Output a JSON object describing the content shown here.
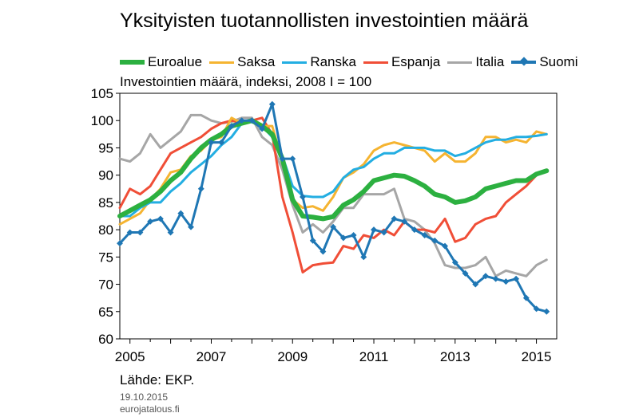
{
  "colors": {
    "Euroalue": "#2CB040",
    "Saksa": "#F5B431",
    "Ranska": "#23AEE2",
    "Espanja": "#F04E37",
    "Italia": "#A6A6A6",
    "Suomi": "#1F77B4"
  },
  "source": "Lähde: EKP.",
  "date": "19.10.2015",
  "site": "eurojatalous.fi",
  "chart_data": {
    "type": "line",
    "title": "Yksityisten tuotannollisten investointien määrä",
    "subtitle": "Investointien määrä, indeksi, 2008 I = 100",
    "xlabel": "",
    "ylabel": "",
    "ylim": [
      60,
      105
    ],
    "xlim": [
      2004.75,
      2015.5
    ],
    "yticks": [
      60,
      65,
      70,
      75,
      80,
      85,
      90,
      95,
      100,
      105
    ],
    "xticks": [
      2005,
      2007,
      2009,
      2011,
      2013,
      2015
    ],
    "grid": false,
    "legend": "top",
    "x": [
      2004.75,
      2005.0,
      2005.25,
      2005.5,
      2005.75,
      2006.0,
      2006.25,
      2006.5,
      2006.75,
      2007.0,
      2007.25,
      2007.5,
      2007.75,
      2008.0,
      2008.25,
      2008.5,
      2008.75,
      2009.0,
      2009.25,
      2009.5,
      2009.75,
      2010.0,
      2010.25,
      2010.5,
      2010.75,
      2011.0,
      2011.25,
      2011.5,
      2011.75,
      2012.0,
      2012.25,
      2012.5,
      2012.75,
      2013.0,
      2013.25,
      2013.5,
      2013.75,
      2014.0,
      2014.25,
      2014.5,
      2014.75,
      2015.0,
      2015.25
    ],
    "series": [
      {
        "name": "Euroalue",
        "values": [
          82.5,
          83.5,
          84.5,
          85.5,
          87.0,
          89.0,
          90.5,
          93.0,
          95.0,
          96.5,
          97.5,
          99.0,
          99.5,
          100.0,
          99.0,
          97.5,
          93.0,
          85.5,
          82.5,
          82.3,
          82.0,
          82.4,
          84.5,
          85.5,
          87.0,
          89.0,
          89.5,
          90.0,
          89.8,
          89.0,
          88.0,
          86.5,
          86.0,
          85.0,
          85.3,
          86.0,
          87.5,
          88.0,
          88.5,
          89.0,
          89.0,
          90.2,
          90.8
        ]
      },
      {
        "name": "Saksa",
        "values": [
          81.0,
          82.0,
          83.0,
          85.5,
          87.5,
          90.5,
          91.0,
          93.5,
          94.5,
          96.5,
          97.0,
          100.5,
          99.5,
          100.0,
          99.0,
          99.0,
          92.5,
          85.5,
          84.0,
          84.3,
          83.5,
          86.0,
          89.5,
          90.5,
          92.0,
          94.5,
          95.5,
          96.0,
          95.5,
          95.0,
          94.5,
          92.5,
          94.0,
          92.5,
          92.5,
          94.0,
          97.0,
          97.0,
          96.0,
          96.5,
          96.0,
          98.0,
          97.5
        ]
      },
      {
        "name": "Ranska",
        "values": [
          82.5,
          82.5,
          84.0,
          85.0,
          85.0,
          87.0,
          88.5,
          90.5,
          92.0,
          93.5,
          95.5,
          97.0,
          99.5,
          100.0,
          99.0,
          97.0,
          93.5,
          88.0,
          86.2,
          86.0,
          86.0,
          87.0,
          89.5,
          91.0,
          91.5,
          93.0,
          94.0,
          94.0,
          95.0,
          95.0,
          95.0,
          94.5,
          94.5,
          93.5,
          94.0,
          95.0,
          96.0,
          96.5,
          96.5,
          97.0,
          97.0,
          97.2,
          97.5
        ]
      },
      {
        "name": "Espanja",
        "values": [
          84.0,
          87.5,
          86.5,
          88.0,
          91.0,
          94.0,
          95.0,
          96.0,
          97.0,
          98.5,
          99.5,
          100.0,
          99.5,
          100.0,
          100.5,
          97.5,
          86.0,
          79.5,
          72.2,
          73.5,
          73.8,
          74.0,
          77.0,
          76.5,
          79.0,
          78.5,
          80.0,
          79.0,
          81.5,
          80.0,
          80.0,
          79.5,
          82.0,
          77.8,
          78.5,
          81.0,
          82.0,
          82.5,
          85.0,
          86.5,
          88.0,
          90.0,
          91.0
        ]
      },
      {
        "name": "Italia",
        "values": [
          93.0,
          92.5,
          94.0,
          97.5,
          95.0,
          96.5,
          98.0,
          101.0,
          101.0,
          100.0,
          99.5,
          99.8,
          100.5,
          100.5,
          97.0,
          95.5,
          91.0,
          84.5,
          79.5,
          81.0,
          79.5,
          81.5,
          84.0,
          84.0,
          86.5,
          86.5,
          86.5,
          87.5,
          82.0,
          81.5,
          80.0,
          77.5,
          73.5,
          73.0,
          73.0,
          73.5,
          75.0,
          71.5,
          72.5,
          72.0,
          71.5,
          73.5,
          74.5
        ]
      },
      {
        "name": "Suomi",
        "values": [
          77.5,
          79.5,
          79.5,
          81.5,
          82.0,
          79.5,
          83.0,
          80.5,
          87.5,
          96.0,
          96.0,
          99.0,
          100.0,
          100.0,
          98.5,
          103.0,
          93.0,
          93.0,
          86.0,
          78.0,
          76.0,
          80.5,
          78.5,
          79.0,
          75.0,
          80.0,
          79.5,
          82.0,
          81.5,
          80.0,
          79.0,
          78.0,
          77.0,
          74.0,
          72.0,
          70.0,
          71.5,
          71.0,
          70.5,
          71.0,
          67.5,
          65.5,
          65.0
        ]
      }
    ]
  }
}
